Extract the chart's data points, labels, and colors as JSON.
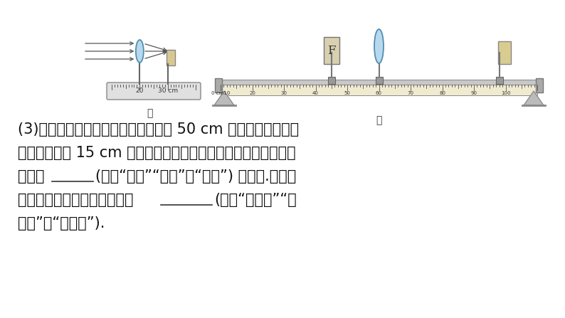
{
  "bg_color": "#ffffff",
  "line1": "(3)如图乙所示，小滨将凸透镜固定在 50 cm 刺度线处，当发光",
  "line2": "物体距凸透镜 15 cm 时，移动光屏，可在光屏上得到一个清晰的",
  "line3_part1": "倒立、",
  "line3_part2": "(选填“缩小”“等大”或“放大”) 的实像.利用这",
  "line4_part1": "一成像规律制成的光学仪器是",
  "line4_part2": "(选填“照相机”“投",
  "line5": "影仪”或“放大镜”).",
  "font_size_text": 15,
  "label_jia": "甲",
  "label_yi": "乙",
  "ruler_ticks_yi": [
    "0 cm10",
    "20",
    "30",
    "40",
    "50",
    "60",
    "70",
    "80",
    "90",
    "100"
  ]
}
